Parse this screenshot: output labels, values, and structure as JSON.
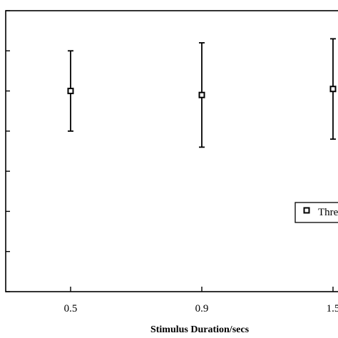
{
  "chart_data": {
    "type": "scatter",
    "xlabel": "Stimulus Duration/secs",
    "ylabel": "",
    "categories": [
      "0.5",
      "0.9",
      "1.5"
    ],
    "ylim": [
      0,
      7
    ],
    "grid": false,
    "legend_position": "right",
    "series": [
      {
        "name": "Thre",
        "color": "#000000",
        "marker": "square",
        "points": [
          {
            "x": "0.5",
            "y": 5.0,
            "err_low": 4.0,
            "err_high": 6.0
          },
          {
            "x": "0.9",
            "y": 4.9,
            "err_low": 3.6,
            "err_high": 6.2
          },
          {
            "x": "1.5",
            "y": 5.05,
            "err_low": 3.8,
            "err_high": 6.3
          }
        ]
      }
    ]
  }
}
